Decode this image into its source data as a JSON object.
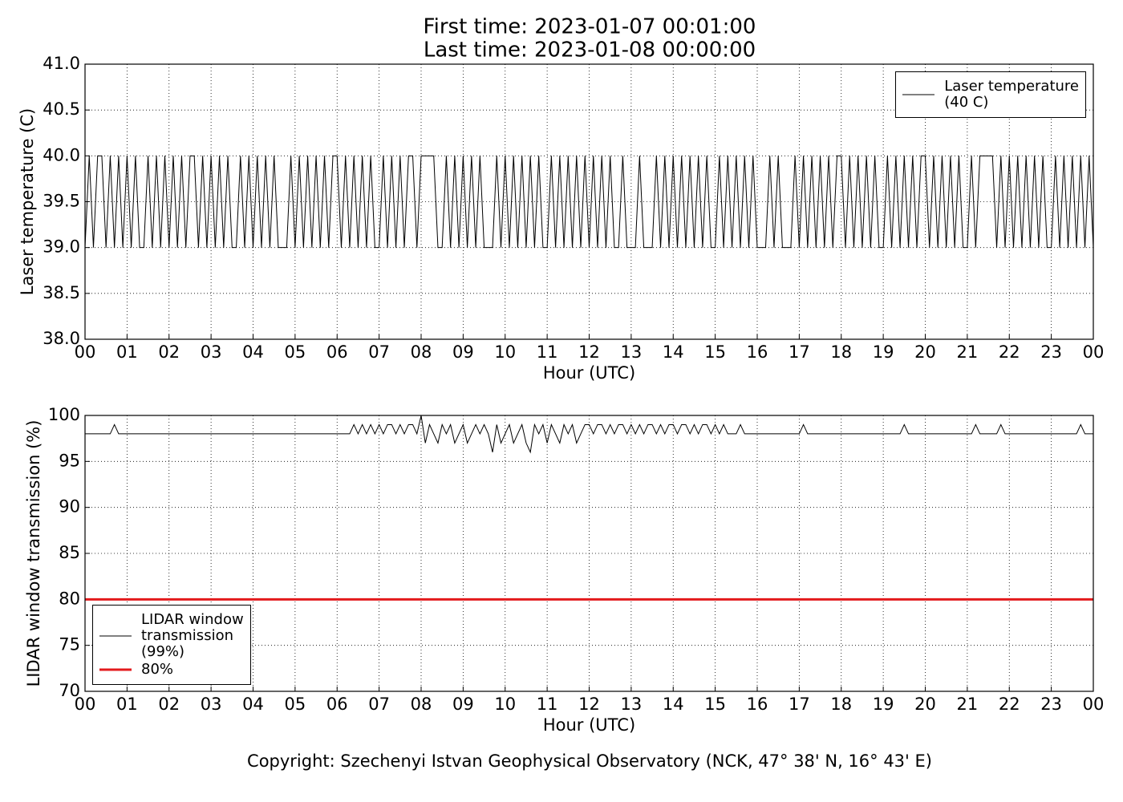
{
  "figure": {
    "title_lines": [
      "First time: 2023-01-07 00:01:00",
      "Last time: 2023-01-08 00:00:00"
    ],
    "footer": "Copyright: Szechenyi Istvan Geophysical Observatory (NCK, 47° 38' N, 16° 43' E)"
  },
  "chart_data": [
    {
      "type": "line",
      "ylabel": "Laser temperature (C)",
      "xlabel": "Hour (UTC)",
      "xlim": [
        0,
        24
      ],
      "ylim": [
        38,
        41
      ],
      "grid": true,
      "legend": "upper right",
      "xticks": [
        {
          "value": 0,
          "label": "00"
        },
        {
          "value": 1,
          "label": "01"
        },
        {
          "value": 2,
          "label": "02"
        },
        {
          "value": 3,
          "label": "03"
        },
        {
          "value": 4,
          "label": "04"
        },
        {
          "value": 5,
          "label": "05"
        },
        {
          "value": 6,
          "label": "06"
        },
        {
          "value": 7,
          "label": "07"
        },
        {
          "value": 8,
          "label": "08"
        },
        {
          "value": 9,
          "label": "09"
        },
        {
          "value": 10,
          "label": "10"
        },
        {
          "value": 11,
          "label": "11"
        },
        {
          "value": 12,
          "label": "12"
        },
        {
          "value": 13,
          "label": "13"
        },
        {
          "value": 14,
          "label": "14"
        },
        {
          "value": 15,
          "label": "15"
        },
        {
          "value": 16,
          "label": "16"
        },
        {
          "value": 17,
          "label": "17"
        },
        {
          "value": 18,
          "label": "18"
        },
        {
          "value": 19,
          "label": "19"
        },
        {
          "value": 20,
          "label": "20"
        },
        {
          "value": 21,
          "label": "21"
        },
        {
          "value": 22,
          "label": "22"
        },
        {
          "value": 23,
          "label": "23"
        },
        {
          "value": 24,
          "label": "00"
        }
      ],
      "yticks": [
        {
          "value": 38,
          "label": "38.0"
        },
        38.5,
        {
          "value": 39,
          "label": "39.0"
        },
        39.5,
        {
          "value": 40,
          "label": "40.0"
        },
        40.5,
        {
          "value": 41,
          "label": "41.0"
        }
      ],
      "x": [
        0,
        0.1,
        0.2,
        0.3,
        0.4,
        0.5,
        0.6,
        0.7,
        0.8,
        0.9,
        1,
        1.1,
        1.2,
        1.3,
        1.4,
        1.5,
        1.6,
        1.7,
        1.8,
        1.9,
        2,
        2.1,
        2.2,
        2.3,
        2.4,
        2.5,
        2.6,
        2.7,
        2.8,
        2.9,
        3,
        3.1,
        3.2,
        3.3,
        3.4,
        3.5,
        3.6,
        3.7,
        3.8,
        3.9,
        4,
        4.1,
        4.2,
        4.3,
        4.4,
        4.5,
        4.6,
        4.7,
        4.8,
        4.9,
        5,
        5.1,
        5.2,
        5.3,
        5.4,
        5.5,
        5.6,
        5.7,
        5.8,
        5.9,
        6,
        6.1,
        6.2,
        6.3,
        6.4,
        6.5,
        6.6,
        6.7,
        6.8,
        6.9,
        7,
        7.1,
        7.2,
        7.3,
        7.4,
        7.5,
        7.6,
        7.7,
        7.8,
        7.9,
        8,
        8.1,
        8.2,
        8.3,
        8.4,
        8.5,
        8.6,
        8.7,
        8.8,
        8.9,
        9,
        9.1,
        9.2,
        9.3,
        9.4,
        9.5,
        9.6,
        9.7,
        9.8,
        9.9,
        10,
        10.1,
        10.2,
        10.3,
        10.4,
        10.5,
        10.6,
        10.7,
        10.8,
        10.9,
        11,
        11.1,
        11.2,
        11.3,
        11.4,
        11.5,
        11.6,
        11.7,
        11.8,
        11.9,
        12,
        12.1,
        12.2,
        12.3,
        12.4,
        12.5,
        12.6,
        12.7,
        12.8,
        12.9,
        13,
        13.1,
        13.2,
        13.3,
        13.4,
        13.5,
        13.6,
        13.7,
        13.8,
        13.9,
        14,
        14.1,
        14.2,
        14.3,
        14.4,
        14.5,
        14.6,
        14.7,
        14.8,
        14.9,
        15,
        15.1,
        15.2,
        15.3,
        15.4,
        15.5,
        15.6,
        15.7,
        15.8,
        15.9,
        16,
        16.1,
        16.2,
        16.3,
        16.4,
        16.5,
        16.6,
        16.7,
        16.8,
        16.9,
        17,
        17.1,
        17.2,
        17.3,
        17.4,
        17.5,
        17.6,
        17.7,
        17.8,
        17.9,
        18,
        18.1,
        18.2,
        18.3,
        18.4,
        18.5,
        18.6,
        18.7,
        18.8,
        18.9,
        19,
        19.1,
        19.2,
        19.3,
        19.4,
        19.5,
        19.6,
        19.7,
        19.8,
        19.9,
        20,
        20.1,
        20.2,
        20.3,
        20.4,
        20.5,
        20.6,
        20.7,
        20.8,
        20.9,
        21,
        21.1,
        21.2,
        21.3,
        21.4,
        21.5,
        21.6,
        21.7,
        21.8,
        21.9,
        22,
        22.1,
        22.2,
        22.3,
        22.4,
        22.5,
        22.6,
        22.7,
        22.8,
        22.9,
        23,
        23.1,
        23.2,
        23.3,
        23.4,
        23.5,
        23.6,
        23.7,
        23.8,
        23.9,
        24
      ],
      "series": [
        {
          "name": "Laser temperature\n(40 C)",
          "color": "#000000",
          "linewidth": 1,
          "values": [
            39,
            40,
            39,
            40,
            40,
            39,
            40,
            39,
            40,
            39,
            40,
            39,
            40,
            39,
            39,
            40,
            39,
            40,
            39,
            40,
            39,
            40,
            39,
            40,
            39,
            40,
            40,
            39,
            40,
            39,
            40,
            39,
            40,
            39,
            40,
            39,
            39,
            40,
            39,
            40,
            39,
            40,
            39,
            40,
            39,
            40,
            39,
            39,
            39,
            40,
            39,
            40,
            39,
            40,
            39,
            40,
            39,
            40,
            39,
            40,
            40,
            39,
            40,
            39,
            40,
            39,
            40,
            39,
            40,
            39,
            39,
            40,
            39,
            40,
            39,
            40,
            39,
            40,
            40,
            39,
            40,
            40,
            40,
            40,
            39,
            39,
            40,
            39,
            40,
            39,
            40,
            39,
            40,
            39,
            40,
            39,
            39,
            39,
            40,
            39,
            40,
            39,
            40,
            39,
            40,
            39,
            40,
            39,
            40,
            39,
            39,
            40,
            39,
            40,
            39,
            40,
            39,
            40,
            39,
            40,
            39,
            40,
            39,
            40,
            39,
            40,
            39,
            39,
            40,
            39,
            39,
            39,
            40,
            39,
            39,
            39,
            40,
            39,
            40,
            39,
            40,
            39,
            40,
            39,
            40,
            39,
            40,
            39,
            40,
            39,
            39,
            40,
            39,
            40,
            39,
            40,
            39,
            40,
            39,
            40,
            39,
            39,
            39,
            40,
            39,
            40,
            39,
            39,
            39,
            40,
            39,
            40,
            39,
            40,
            39,
            40,
            39,
            40,
            39,
            40,
            40,
            39,
            40,
            39,
            40,
            39,
            40,
            39,
            40,
            39,
            39,
            40,
            39,
            40,
            39,
            40,
            39,
            40,
            39,
            40,
            40,
            39,
            40,
            39,
            40,
            39,
            40,
            39,
            40,
            39,
            39,
            40,
            39,
            40,
            40,
            40,
            40,
            39,
            40,
            39,
            40,
            39,
            40,
            39,
            40,
            39,
            40,
            39,
            40,
            39,
            39,
            40,
            39,
            40,
            39,
            40,
            39,
            40,
            39,
            40,
            39
          ]
        }
      ]
    },
    {
      "type": "line",
      "ylabel": "LIDAR window transmission (%)",
      "xlabel": "Hour (UTC)",
      "xlim": [
        0,
        24
      ],
      "ylim": [
        70,
        100
      ],
      "grid": true,
      "legend": "lower left",
      "xticks": [
        {
          "value": 0,
          "label": "00"
        },
        {
          "value": 1,
          "label": "01"
        },
        {
          "value": 2,
          "label": "02"
        },
        {
          "value": 3,
          "label": "03"
        },
        {
          "value": 4,
          "label": "04"
        },
        {
          "value": 5,
          "label": "05"
        },
        {
          "value": 6,
          "label": "06"
        },
        {
          "value": 7,
          "label": "07"
        },
        {
          "value": 8,
          "label": "08"
        },
        {
          "value": 9,
          "label": "09"
        },
        {
          "value": 10,
          "label": "10"
        },
        {
          "value": 11,
          "label": "11"
        },
        {
          "value": 12,
          "label": "12"
        },
        {
          "value": 13,
          "label": "13"
        },
        {
          "value": 14,
          "label": "14"
        },
        {
          "value": 15,
          "label": "15"
        },
        {
          "value": 16,
          "label": "16"
        },
        {
          "value": 17,
          "label": "17"
        },
        {
          "value": 18,
          "label": "18"
        },
        {
          "value": 19,
          "label": "19"
        },
        {
          "value": 20,
          "label": "20"
        },
        {
          "value": 21,
          "label": "21"
        },
        {
          "value": 22,
          "label": "22"
        },
        {
          "value": 23,
          "label": "23"
        },
        {
          "value": 24,
          "label": "00"
        }
      ],
      "yticks": [
        70,
        75,
        80,
        85,
        90,
        95,
        100
      ],
      "x": [
        0,
        0.1,
        0.2,
        0.3,
        0.4,
        0.5,
        0.6,
        0.7,
        0.8,
        0.9,
        1,
        1.1,
        1.2,
        1.3,
        1.4,
        1.5,
        1.6,
        1.7,
        1.8,
        1.9,
        2,
        2.1,
        2.2,
        2.3,
        2.4,
        2.5,
        2.6,
        2.7,
        2.8,
        2.9,
        3,
        3.1,
        3.2,
        3.3,
        3.4,
        3.5,
        3.6,
        3.7,
        3.8,
        3.9,
        4,
        4.1,
        4.2,
        4.3,
        4.4,
        4.5,
        4.6,
        4.7,
        4.8,
        4.9,
        5,
        5.1,
        5.2,
        5.3,
        5.4,
        5.5,
        5.6,
        5.7,
        5.8,
        5.9,
        6,
        6.1,
        6.2,
        6.3,
        6.4,
        6.5,
        6.6,
        6.7,
        6.8,
        6.9,
        7,
        7.1,
        7.2,
        7.3,
        7.4,
        7.5,
        7.6,
        7.7,
        7.8,
        7.9,
        8,
        8.1,
        8.2,
        8.3,
        8.4,
        8.5,
        8.6,
        8.7,
        8.8,
        8.9,
        9,
        9.1,
        9.2,
        9.3,
        9.4,
        9.5,
        9.6,
        9.7,
        9.8,
        9.9,
        10,
        10.1,
        10.2,
        10.3,
        10.4,
        10.5,
        10.6,
        10.7,
        10.8,
        10.9,
        11,
        11.1,
        11.2,
        11.3,
        11.4,
        11.5,
        11.6,
        11.7,
        11.8,
        11.9,
        12,
        12.1,
        12.2,
        12.3,
        12.4,
        12.5,
        12.6,
        12.7,
        12.8,
        12.9,
        13,
        13.1,
        13.2,
        13.3,
        13.4,
        13.5,
        13.6,
        13.7,
        13.8,
        13.9,
        14,
        14.1,
        14.2,
        14.3,
        14.4,
        14.5,
        14.6,
        14.7,
        14.8,
        14.9,
        15,
        15.1,
        15.2,
        15.3,
        15.4,
        15.5,
        15.6,
        15.7,
        15.8,
        15.9,
        16,
        16.1,
        16.2,
        16.3,
        16.4,
        16.5,
        16.6,
        16.7,
        16.8,
        16.9,
        17,
        17.1,
        17.2,
        17.3,
        17.4,
        17.5,
        17.6,
        17.7,
        17.8,
        17.9,
        18,
        18.1,
        18.2,
        18.3,
        18.4,
        18.5,
        18.6,
        18.7,
        18.8,
        18.9,
        19,
        19.1,
        19.2,
        19.3,
        19.4,
        19.5,
        19.6,
        19.7,
        19.8,
        19.9,
        20,
        20.1,
        20.2,
        20.3,
        20.4,
        20.5,
        20.6,
        20.7,
        20.8,
        20.9,
        21,
        21.1,
        21.2,
        21.3,
        21.4,
        21.5,
        21.6,
        21.7,
        21.8,
        21.9,
        22,
        22.1,
        22.2,
        22.3,
        22.4,
        22.5,
        22.6,
        22.7,
        22.8,
        22.9,
        23,
        23.1,
        23.2,
        23.3,
        23.4,
        23.5,
        23.6,
        23.7,
        23.8,
        23.9,
        24
      ],
      "series": [
        {
          "name": "LIDAR window\ntransmission\n(99%)",
          "color": "#000000",
          "linewidth": 1,
          "values": [
            98,
            98,
            98,
            98,
            98,
            98,
            98,
            99,
            98,
            98,
            98,
            98,
            98,
            98,
            98,
            98,
            98,
            98,
            98,
            98,
            98,
            98,
            98,
            98,
            98,
            98,
            98,
            98,
            98,
            98,
            98,
            98,
            98,
            98,
            98,
            98,
            98,
            98,
            98,
            98,
            98,
            98,
            98,
            98,
            98,
            98,
            98,
            98,
            98,
            98,
            98,
            98,
            98,
            98,
            98,
            98,
            98,
            98,
            98,
            98,
            98,
            98,
            98,
            98,
            99,
            98,
            99,
            98,
            99,
            98,
            99,
            98,
            99,
            99,
            98,
            99,
            98,
            99,
            99,
            98,
            100,
            97,
            99,
            98,
            97,
            99,
            98,
            99,
            97,
            98,
            99,
            97,
            98,
            99,
            98,
            99,
            98,
            96,
            99,
            97,
            98,
            99,
            97,
            98,
            99,
            97,
            96,
            99,
            98,
            99,
            97,
            99,
            98,
            97,
            99,
            98,
            99,
            97,
            98,
            99,
            99,
            98,
            99,
            99,
            98,
            99,
            98,
            99,
            99,
            98,
            99,
            98,
            99,
            98,
            99,
            99,
            98,
            99,
            98,
            99,
            99,
            98,
            99,
            99,
            98,
            99,
            98,
            99,
            99,
            98,
            99,
            98,
            99,
            98,
            98,
            98,
            99,
            98,
            98,
            98,
            98,
            98,
            98,
            98,
            98,
            98,
            98,
            98,
            98,
            98,
            98,
            99,
            98,
            98,
            98,
            98,
            98,
            98,
            98,
            98,
            98,
            98,
            98,
            98,
            98,
            98,
            98,
            98,
            98,
            98,
            98,
            98,
            98,
            98,
            98,
            99,
            98,
            98,
            98,
            98,
            98,
            98,
            98,
            98,
            98,
            98,
            98,
            98,
            98,
            98,
            98,
            98,
            99,
            98,
            98,
            98,
            98,
            98,
            99,
            98,
            98,
            98,
            98,
            98,
            98,
            98,
            98,
            98,
            98,
            98,
            98,
            98,
            98,
            98,
            98,
            98,
            98,
            99,
            98,
            98,
            98
          ]
        },
        {
          "name": "80%",
          "color": "#e31a1c",
          "linewidth": 3,
          "x": [
            0,
            24
          ],
          "values": [
            80,
            80
          ]
        }
      ]
    }
  ]
}
